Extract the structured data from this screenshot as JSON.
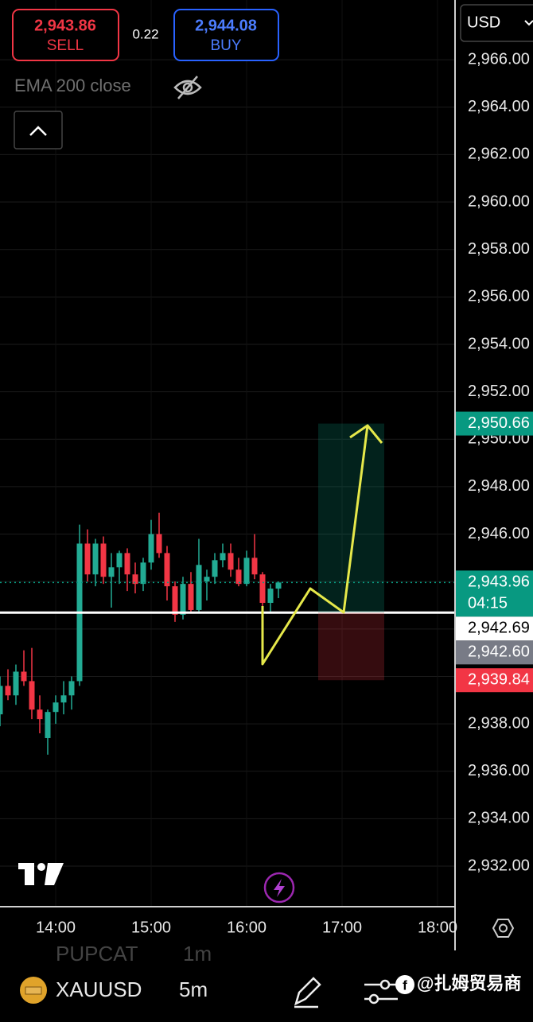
{
  "header": {
    "sell_price": "2,943.86",
    "sell_label": "SELL",
    "spread": "0.22",
    "buy_price": "2,944.08",
    "buy_label": "BUY",
    "indicator": "EMA 200 close",
    "currency": "USD"
  },
  "chart_data": {
    "type": "candlestick",
    "categories": [
      null,
      null,
      null,
      null,
      null,
      null,
      null,
      "14:00",
      null,
      null,
      null,
      null,
      null,
      null,
      null,
      null,
      null,
      null,
      null,
      "15:00",
      null,
      null,
      null,
      null,
      null,
      null,
      null,
      null,
      null,
      null,
      null,
      "16:00",
      null,
      null,
      null,
      null,
      null,
      null,
      null,
      null,
      null,
      null,
      null,
      "17:00",
      null,
      null,
      null,
      null,
      null,
      null,
      null,
      null,
      null,
      null,
      null,
      "18:00",
      null
    ],
    "open": [
      2938.4,
      2939.6,
      2939.2,
      2940.2,
      2939.8,
      2938.6,
      2937.4,
      2938.5,
      2938.9,
      2939.2,
      2939.8,
      2945.6,
      2944.3,
      2945.6,
      2944.2,
      2944.6,
      2945.2,
      2944.3,
      2943.9,
      2944.8,
      2946.0,
      2945.2,
      2943.8,
      2942.6,
      2943.9,
      2942.8,
      2944.0,
      2944.2,
      2944.9,
      2945.2,
      2944.5,
      2943.9,
      2945.0,
      2944.3,
      2943.1,
      2943.7,
      null,
      null,
      null,
      null,
      null,
      null,
      null,
      null,
      null,
      null,
      null,
      null,
      null,
      null,
      null,
      null,
      null,
      null,
      null,
      null,
      null
    ],
    "high": [
      2940.0,
      2940.3,
      2940.5,
      2941.1,
      2941.2,
      2939.2,
      2938.6,
      2939.2,
      2939.8,
      2940.0,
      2946.4,
      2946.2,
      2945.8,
      2945.9,
      2945.2,
      2945.3,
      2945.4,
      2944.8,
      2945.0,
      2946.6,
      2946.9,
      2945.5,
      2944.0,
      2944.2,
      2944.4,
      2945.8,
      2944.5,
      2945.2,
      2945.6,
      2945.6,
      2945.0,
      2945.3,
      2946.0,
      2944.4,
      2943.9,
      2944.0,
      null,
      null,
      null,
      null,
      null,
      null,
      null,
      null,
      null,
      null,
      null,
      null,
      null,
      null,
      null,
      null,
      null,
      null,
      null,
      null,
      null
    ],
    "low": [
      2937.9,
      2939.0,
      2938.8,
      2939.6,
      2938.2,
      2937.6,
      2936.7,
      2938.0,
      2938.4,
      2938.6,
      2939.6,
      2944.0,
      2943.8,
      2943.9,
      2942.9,
      2943.9,
      2943.6,
      2943.5,
      2943.6,
      2944.5,
      2945.0,
      2943.2,
      2942.3,
      2942.4,
      2942.7,
      2942.7,
      2943.2,
      2943.9,
      2944.6,
      2944.2,
      2943.8,
      2943.8,
      2944.1,
      2942.6,
      2942.7,
      2943.3,
      null,
      null,
      null,
      null,
      null,
      null,
      null,
      null,
      null,
      null,
      null,
      null,
      null,
      null,
      null,
      null,
      null,
      null,
      null,
      null,
      null
    ],
    "close": [
      2939.6,
      2939.2,
      2940.2,
      2939.8,
      2938.6,
      2938.2,
      2938.5,
      2938.9,
      2939.2,
      2939.8,
      2945.6,
      2944.3,
      2945.6,
      2944.2,
      2944.6,
      2945.2,
      2944.3,
      2943.9,
      2944.8,
      2946.0,
      2945.2,
      2943.8,
      2942.6,
      2943.9,
      2942.8,
      2944.7,
      2944.2,
      2944.9,
      2945.2,
      2944.5,
      2943.9,
      2945.0,
      2944.3,
      2943.1,
      2943.7,
      2943.96,
      null,
      null,
      null,
      null,
      null,
      null,
      null,
      null,
      null,
      null,
      null,
      null,
      null,
      null,
      null,
      null,
      null,
      null,
      null,
      null,
      null
    ],
    "up_color": "#22ab94",
    "down_color": "#f23645",
    "ylim": [
      2930.29,
      2968.52
    ],
    "yticks": [
      {
        "value": 2932,
        "label": "2,932.00"
      },
      {
        "value": 2934,
        "label": "2,934.00"
      },
      {
        "value": 2936,
        "label": "2,936.00"
      },
      {
        "value": 2938,
        "label": "2,938.00"
      },
      {
        "value": 2940,
        "label": "2,940.00"
      },
      {
        "value": 2942,
        "label": "2,942.00"
      },
      {
        "value": 2944,
        "label": "2,944.00"
      },
      {
        "value": 2946,
        "label": "2,946.00"
      },
      {
        "value": 2948,
        "label": "2,948.00"
      },
      {
        "value": 2950,
        "label": "2,950.00"
      },
      {
        "value": 2952,
        "label": "2,952.00"
      },
      {
        "value": 2954,
        "label": "2,954.00"
      },
      {
        "value": 2956,
        "label": "2,956.00"
      },
      {
        "value": 2958,
        "label": "2,958.00"
      },
      {
        "value": 2960,
        "label": "2,960.00"
      },
      {
        "value": 2962,
        "label": "2,962.00"
      },
      {
        "value": 2964,
        "label": "2,964.00"
      },
      {
        "value": 2966,
        "label": "2,966.00"
      }
    ],
    "grid": true,
    "price_lines": [
      {
        "value": 2950.66,
        "label": "2,950.66",
        "color": "#089981",
        "text_color": "#ffffff"
      },
      {
        "value": 2943.96,
        "label": "2,943.96",
        "color": "#089981",
        "text_color": "#ffffff",
        "line": "dotted"
      },
      {
        "value": 2942.69,
        "label": "2,942.69",
        "color": "#ffffff",
        "text_color": "#000000",
        "line": "solid"
      },
      {
        "value": 2942.6,
        "label": "2,942.60",
        "color": "#787b86",
        "text_color": "#ffffff"
      },
      {
        "value": 2939.84,
        "label": "2,939.84",
        "color": "#f23645",
        "text_color": "#ffffff"
      }
    ],
    "countdown": "04:15"
  },
  "footer": {
    "symbol": "XAUUSD",
    "interval": "5m",
    "ghost_symbol": "PUPCAT",
    "ghost_interval": "1m",
    "watermark": "@扎姆贸易商"
  }
}
